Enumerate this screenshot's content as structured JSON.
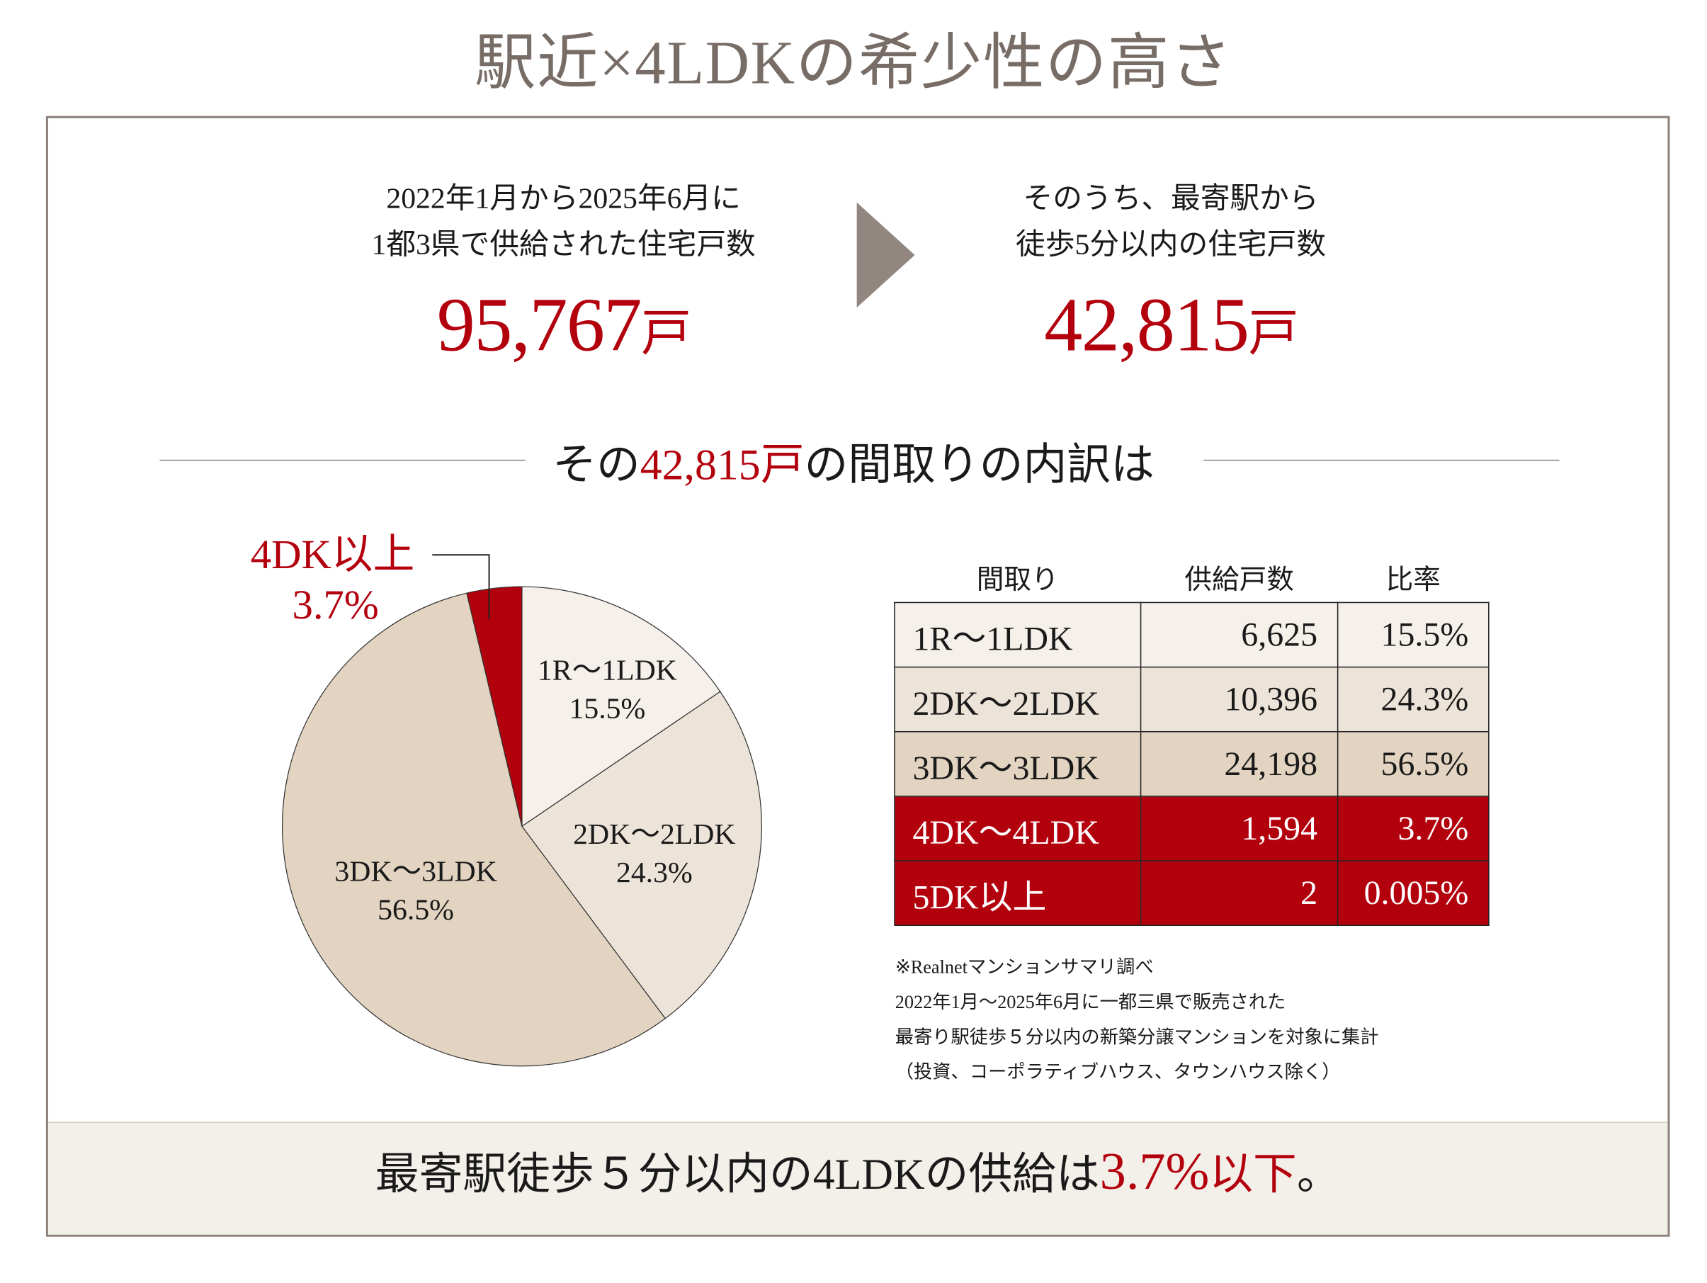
{
  "title": "駅近×4LDKの希少性の高さ",
  "left_block": {
    "line1": "2022年1月から2025年6月に",
    "line2": "1都3県で供給された住宅戸数",
    "value": "95,767",
    "unit": "戸"
  },
  "right_block": {
    "line1": "そのうち、最寄駅から",
    "line2": "徒歩5分以内の住宅戸数",
    "value": "42,815",
    "unit": "戸"
  },
  "section_heading": {
    "pre": "その",
    "value": "42,815戸",
    "post": "の間取りの内訳は"
  },
  "colors": {
    "accent_red": "#b3000d",
    "slice_1": "#f5f0ea",
    "slice_2": "#ede4d9",
    "slice_3": "#e2d4c1",
    "slice_4": "#b3000d",
    "arrow": "#918680"
  },
  "chart_data": {
    "type": "pie",
    "slices": [
      {
        "label": "1R～1LDK",
        "value": 15.5,
        "display": "15.5%"
      },
      {
        "label": "2DK～2LDK",
        "value": 24.3,
        "display": "24.3%"
      },
      {
        "label": "3DK～3LDK",
        "value": 56.5,
        "display": "56.5%"
      },
      {
        "label": "4DK以上",
        "value": 3.7,
        "display": "3.7%"
      }
    ],
    "start": "12 o'clock, clockwise"
  },
  "table": {
    "headers": [
      "間取り",
      "供給戸数",
      "比率"
    ],
    "rows": [
      {
        "type": "1R～1LDK",
        "count": "6,625",
        "ratio": "15.5%"
      },
      {
        "type": "2DK～2LDK",
        "count": "10,396",
        "ratio": "24.3%"
      },
      {
        "type": "3DK～3LDK",
        "count": "24,198",
        "ratio": "56.5%"
      },
      {
        "type": "4DK～4LDK",
        "count": "1,594",
        "ratio": "3.7%"
      },
      {
        "type": "5DK以上",
        "count": "2",
        "ratio": "0.005%"
      }
    ]
  },
  "notes": [
    "※Realnetマンションサマリ調べ",
    "2022年1月～2025年6月に一都三県で販売された",
    "最寄り駅徒歩５分以内の新築分譲マンションを対象に集計",
    "（投資、コーポラティブハウス、タウンハウス除く）"
  ],
  "conclusion": {
    "pre": "最寄駅徒歩５分以内の4LDKの供給は",
    "value": "3.7%",
    "post": "以下",
    "end": "。"
  }
}
